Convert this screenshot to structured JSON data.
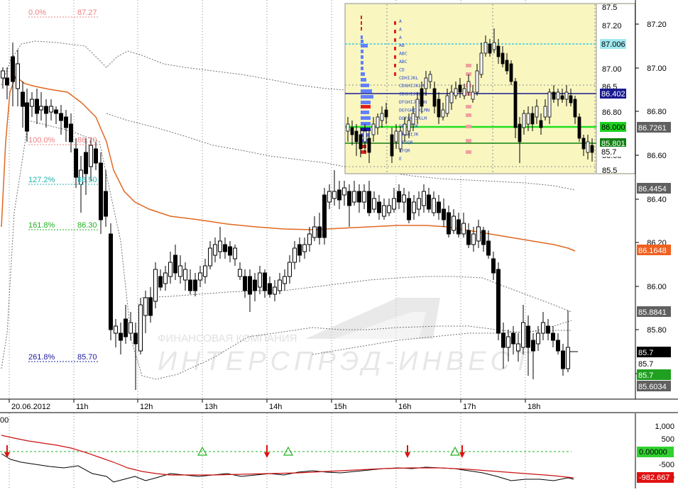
{
  "watermark": {
    "company_line": "ФИНАНСОВАЯ КОМПАНИЯ",
    "brand_line": "ИНТЕРСПРЭД-ИНВЕСТ"
  },
  "fibonacci": [
    {
      "pct": "0.0%",
      "price": "87.27",
      "color": "#f08080"
    },
    {
      "pct": "100.0%",
      "price": "86.70",
      "color": "#f08080"
    },
    {
      "pct": "127.2%",
      "price": "86.50",
      "color": "#20b0b0"
    },
    {
      "pct": "161.8%",
      "price": "86.30",
      "color": "#20b020"
    },
    {
      "pct": "261.8%",
      "price": "85.70",
      "color": "#1a1aa0"
    }
  ],
  "price_axis": {
    "ticks": [
      "87.20",
      "87.00",
      "86.80",
      "86.60",
      "86.40",
      "86.20",
      "86.00",
      "85.80",
      "85.60"
    ],
    "badges": [
      {
        "label": "86.7261",
        "bg": "#606060",
        "fg": "#ffffff"
      },
      {
        "label": "86.4454",
        "bg": "#606060",
        "fg": "#ffffff"
      },
      {
        "label": "86.1648",
        "bg": "#f06020",
        "fg": "#ffffff"
      },
      {
        "label": "85.8841",
        "bg": "#606060",
        "fg": "#ffffff"
      },
      {
        "label": "85.7",
        "bg": "#000000",
        "fg": "#ffffff"
      },
      {
        "label": "85.7",
        "bg": "#ffffff",
        "fg": "#000000"
      },
      {
        "label": "85.7",
        "bg": "#20a020",
        "fg": "#ffffff"
      },
      {
        "label": "85.6034",
        "bg": "#606060",
        "fg": "#ffffff"
      }
    ]
  },
  "time_axis": [
    "20.06.2012",
    "11h",
    "12h",
    "13h",
    "14h",
    "15h",
    "16h",
    "17h",
    "18h"
  ],
  "inset": {
    "axis_ticks": [
      "87.5",
      "87.20",
      "87.00",
      "86.5",
      "86.80",
      "86.60",
      "85.5"
    ],
    "badges": [
      {
        "label": "87.006",
        "bg": "#a0e8f0",
        "fg": "#000000"
      },
      {
        "label": "86.402",
        "bg": "#1a1a90",
        "fg": "#ffffff"
      },
      {
        "label": "86.000",
        "bg": "#20d020",
        "fg": "#000000"
      },
      {
        "label": "85.801",
        "bg": "#108010",
        "fg": "#ffffff"
      },
      {
        "label": "85.7",
        "bg": "#ffffff",
        "fg": "#000000"
      }
    ],
    "profile_letters": [
      "A",
      "A",
      "A",
      "AB",
      "ABC",
      "ABC",
      "CD",
      "CDHIJKL",
      "CDGHIJKLMN",
      "CDGHIJKLMN",
      "DFGHIJKLMN",
      "DEFGHIJKLMN",
      "DEFGHIJKLM",
      "DEFGIJK",
      "EFGHIJK",
      "EFGQR",
      "EFQR",
      "E"
    ]
  },
  "oscillator": {
    "axis_ticks": [
      "1,000",
      "500",
      "-500",
      "-1000"
    ],
    "top_left_label": "00",
    "badges": [
      {
        "label": "0.00000",
        "bg": "#30d030",
        "fg": "#000000"
      },
      {
        "label": "-982.667",
        "bg": "#e01010",
        "fg": "#ffffff"
      }
    ]
  }
}
